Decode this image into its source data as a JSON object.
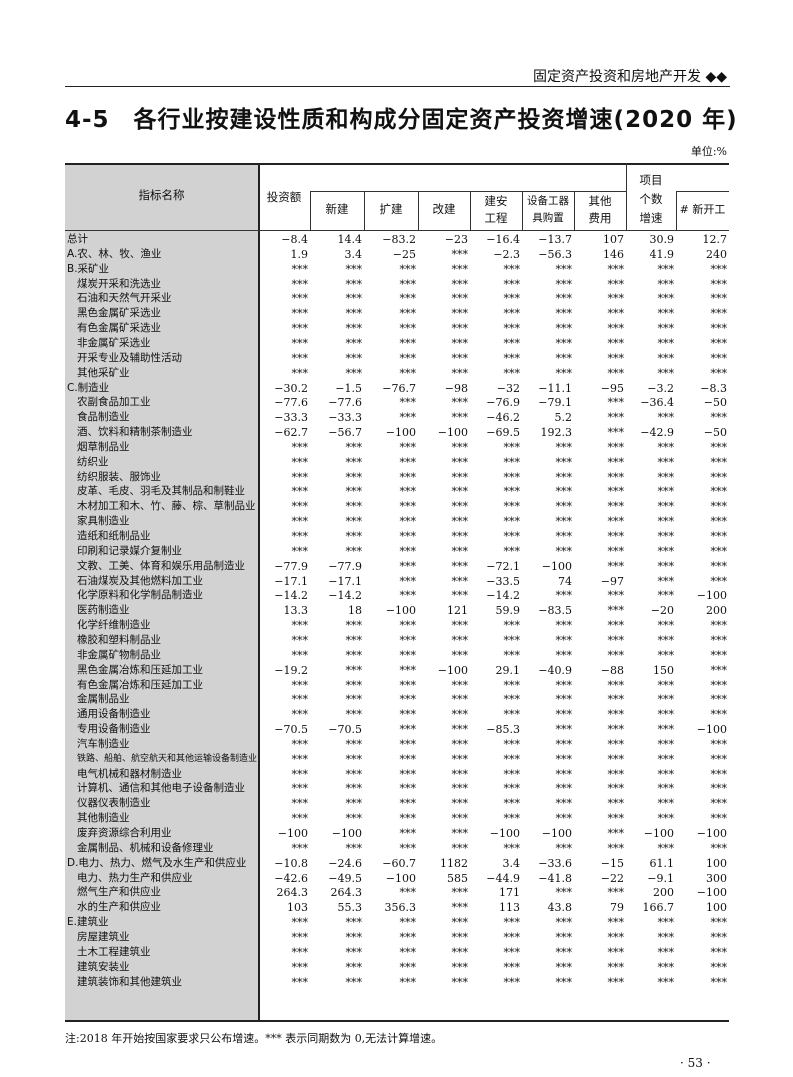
{
  "header": {
    "section": "固定资产投资和房地产开发",
    "ornament": "◆◆"
  },
  "title": "4-5　各行业按建设性质和构成分固定资产投资增速(2020 年)",
  "unit": "单位:%",
  "table": {
    "headers": {
      "name": "指标名称",
      "investment": "投资额",
      "new": "新建",
      "expand": "扩建",
      "rebuild": "改建",
      "construction_1": "建安",
      "construction_2": "工程",
      "equipment_1": "设备工器",
      "equipment_2": "具购置",
      "other_1": "其他",
      "other_2": "费用",
      "projects_1": "项目",
      "projects_2": "个数",
      "projects_3": "增速",
      "new_start": "# 新开工"
    },
    "rows": [
      {
        "name": "总计",
        "indent": false,
        "values": [
          "−8.4",
          "14.4",
          "−83.2",
          "−23",
          "−16.4",
          "−13.7",
          "107",
          "30.9",
          "12.7"
        ]
      },
      {
        "name": "A.农、林、牧、渔业",
        "indent": false,
        "values": [
          "1.9",
          "3.4",
          "−25",
          "***",
          "−2.3",
          "−56.3",
          "146",
          "41.9",
          "240"
        ]
      },
      {
        "name": "B.采矿业",
        "indent": false,
        "values": [
          "***",
          "***",
          "***",
          "***",
          "***",
          "***",
          "***",
          "***",
          "***"
        ]
      },
      {
        "name": "煤炭开采和洗选业",
        "indent": true,
        "values": [
          "***",
          "***",
          "***",
          "***",
          "***",
          "***",
          "***",
          "***",
          "***"
        ]
      },
      {
        "name": "石油和天然气开采业",
        "indent": true,
        "values": [
          "***",
          "***",
          "***",
          "***",
          "***",
          "***",
          "***",
          "***",
          "***"
        ]
      },
      {
        "name": "黑色金属矿采选业",
        "indent": true,
        "values": [
          "***",
          "***",
          "***",
          "***",
          "***",
          "***",
          "***",
          "***",
          "***"
        ]
      },
      {
        "name": "有色金属矿采选业",
        "indent": true,
        "values": [
          "***",
          "***",
          "***",
          "***",
          "***",
          "***",
          "***",
          "***",
          "***"
        ]
      },
      {
        "name": "非金属矿采选业",
        "indent": true,
        "values": [
          "***",
          "***",
          "***",
          "***",
          "***",
          "***",
          "***",
          "***",
          "***"
        ]
      },
      {
        "name": "开采专业及辅助性活动",
        "indent": true,
        "values": [
          "***",
          "***",
          "***",
          "***",
          "***",
          "***",
          "***",
          "***",
          "***"
        ]
      },
      {
        "name": "其他采矿业",
        "indent": true,
        "values": [
          "***",
          "***",
          "***",
          "***",
          "***",
          "***",
          "***",
          "***",
          "***"
        ]
      },
      {
        "name": "C.制造业",
        "indent": false,
        "values": [
          "−30.2",
          "−1.5",
          "−76.7",
          "−98",
          "−32",
          "−11.1",
          "−95",
          "−3.2",
          "−8.3"
        ]
      },
      {
        "name": "农副食品加工业",
        "indent": true,
        "values": [
          "−77.6",
          "−77.6",
          "***",
          "***",
          "−76.9",
          "−79.1",
          "***",
          "−36.4",
          "−50"
        ]
      },
      {
        "name": "食品制造业",
        "indent": true,
        "values": [
          "−33.3",
          "−33.3",
          "***",
          "***",
          "−46.2",
          "5.2",
          "***",
          "***",
          "***"
        ]
      },
      {
        "name": "酒、饮料和精制茶制造业",
        "indent": true,
        "values": [
          "−62.7",
          "−56.7",
          "−100",
          "−100",
          "−69.5",
          "192.3",
          "***",
          "−42.9",
          "−50"
        ]
      },
      {
        "name": "烟草制品业",
        "indent": true,
        "values": [
          "***",
          "***",
          "***",
          "***",
          "***",
          "***",
          "***",
          "***",
          "***"
        ]
      },
      {
        "name": "纺织业",
        "indent": true,
        "values": [
          "***",
          "***",
          "***",
          "***",
          "***",
          "***",
          "***",
          "***",
          "***"
        ]
      },
      {
        "name": "纺织服装、服饰业",
        "indent": true,
        "values": [
          "***",
          "***",
          "***",
          "***",
          "***",
          "***",
          "***",
          "***",
          "***"
        ]
      },
      {
        "name": "皮革、毛皮、羽毛及其制品和制鞋业",
        "indent": true,
        "values": [
          "***",
          "***",
          "***",
          "***",
          "***",
          "***",
          "***",
          "***",
          "***"
        ]
      },
      {
        "name": "木材加工和木、竹、藤、棕、草制品业",
        "indent": true,
        "values": [
          "***",
          "***",
          "***",
          "***",
          "***",
          "***",
          "***",
          "***",
          "***"
        ]
      },
      {
        "name": "家具制造业",
        "indent": true,
        "values": [
          "***",
          "***",
          "***",
          "***",
          "***",
          "***",
          "***",
          "***",
          "***"
        ]
      },
      {
        "name": "造纸和纸制品业",
        "indent": true,
        "values": [
          "***",
          "***",
          "***",
          "***",
          "***",
          "***",
          "***",
          "***",
          "***"
        ]
      },
      {
        "name": "印刷和记录媒介复制业",
        "indent": true,
        "values": [
          "***",
          "***",
          "***",
          "***",
          "***",
          "***",
          "***",
          "***",
          "***"
        ]
      },
      {
        "name": "文教、工美、体育和娱乐用品制造业",
        "indent": true,
        "values": [
          "−77.9",
          "−77.9",
          "***",
          "***",
          "−72.1",
          "−100",
          "***",
          "***",
          "***"
        ]
      },
      {
        "name": "石油煤炭及其他燃料加工业",
        "indent": true,
        "values": [
          "−17.1",
          "−17.1",
          "***",
          "***",
          "−33.5",
          "74",
          "−97",
          "***",
          "***"
        ]
      },
      {
        "name": "化学原料和化学制品制造业",
        "indent": true,
        "values": [
          "−14.2",
          "−14.2",
          "***",
          "***",
          "−14.2",
          "***",
          "***",
          "***",
          "−100"
        ]
      },
      {
        "name": "医药制造业",
        "indent": true,
        "values": [
          "13.3",
          "18",
          "−100",
          "121",
          "59.9",
          "−83.5",
          "***",
          "−20",
          "200"
        ]
      },
      {
        "name": "化学纤维制造业",
        "indent": true,
        "values": [
          "***",
          "***",
          "***",
          "***",
          "***",
          "***",
          "***",
          "***",
          "***"
        ]
      },
      {
        "name": "橡胶和塑料制品业",
        "indent": true,
        "values": [
          "***",
          "***",
          "***",
          "***",
          "***",
          "***",
          "***",
          "***",
          "***"
        ]
      },
      {
        "name": "非金属矿物制品业",
        "indent": true,
        "values": [
          "***",
          "***",
          "***",
          "***",
          "***",
          "***",
          "***",
          "***",
          "***"
        ]
      },
      {
        "name": "黑色金属冶炼和压延加工业",
        "indent": true,
        "values": [
          "−19.2",
          "***",
          "***",
          "−100",
          "29.1",
          "−40.9",
          "−88",
          "150",
          "***"
        ]
      },
      {
        "name": "有色金属冶炼和压延加工业",
        "indent": true,
        "values": [
          "***",
          "***",
          "***",
          "***",
          "***",
          "***",
          "***",
          "***",
          "***"
        ]
      },
      {
        "name": "金属制品业",
        "indent": true,
        "values": [
          "***",
          "***",
          "***",
          "***",
          "***",
          "***",
          "***",
          "***",
          "***"
        ]
      },
      {
        "name": "通用设备制造业",
        "indent": true,
        "values": [
          "***",
          "***",
          "***",
          "***",
          "***",
          "***",
          "***",
          "***",
          "***"
        ]
      },
      {
        "name": "专用设备制造业",
        "indent": true,
        "values": [
          "−70.5",
          "−70.5",
          "***",
          "***",
          "−85.3",
          "***",
          "***",
          "***",
          "−100"
        ]
      },
      {
        "name": "汽车制造业",
        "indent": true,
        "values": [
          "***",
          "***",
          "***",
          "***",
          "***",
          "***",
          "***",
          "***",
          "***"
        ]
      },
      {
        "name": "铁路、船舶、航空航天和其他运输设备制造业",
        "indent": true,
        "small": true,
        "values": [
          "***",
          "***",
          "***",
          "***",
          "***",
          "***",
          "***",
          "***",
          "***"
        ]
      },
      {
        "name": "电气机械和器材制造业",
        "indent": true,
        "values": [
          "***",
          "***",
          "***",
          "***",
          "***",
          "***",
          "***",
          "***",
          "***"
        ]
      },
      {
        "name": "计算机、通信和其他电子设备制造业",
        "indent": true,
        "values": [
          "***",
          "***",
          "***",
          "***",
          "***",
          "***",
          "***",
          "***",
          "***"
        ]
      },
      {
        "name": "仪器仪表制造业",
        "indent": true,
        "values": [
          "***",
          "***",
          "***",
          "***",
          "***",
          "***",
          "***",
          "***",
          "***"
        ]
      },
      {
        "name": "其他制造业",
        "indent": true,
        "values": [
          "***",
          "***",
          "***",
          "***",
          "***",
          "***",
          "***",
          "***",
          "***"
        ]
      },
      {
        "name": "废弃资源综合利用业",
        "indent": true,
        "values": [
          "−100",
          "−100",
          "***",
          "***",
          "−100",
          "−100",
          "***",
          "−100",
          "−100"
        ]
      },
      {
        "name": "金属制品、机械和设备修理业",
        "indent": true,
        "values": [
          "***",
          "***",
          "***",
          "***",
          "***",
          "***",
          "***",
          "***",
          "***"
        ]
      },
      {
        "name": "D.电力、热力、燃气及水生产和供应业",
        "indent": false,
        "values": [
          "−10.8",
          "−24.6",
          "−60.7",
          "1182",
          "3.4",
          "−33.6",
          "−15",
          "61.1",
          "100"
        ]
      },
      {
        "name": "电力、热力生产和供应业",
        "indent": true,
        "values": [
          "−42.6",
          "−49.5",
          "−100",
          "585",
          "−44.9",
          "−41.8",
          "−22",
          "−9.1",
          "300"
        ]
      },
      {
        "name": "燃气生产和供应业",
        "indent": true,
        "values": [
          "264.3",
          "264.3",
          "***",
          "***",
          "171",
          "***",
          "***",
          "200",
          "−100"
        ]
      },
      {
        "name": "水的生产和供应业",
        "indent": true,
        "values": [
          "103",
          "55.3",
          "356.3",
          "***",
          "113",
          "43.8",
          "79",
          "166.7",
          "100"
        ]
      },
      {
        "name": "E.建筑业",
        "indent": false,
        "values": [
          "***",
          "***",
          "***",
          "***",
          "***",
          "***",
          "***",
          "***",
          "***"
        ]
      },
      {
        "name": "房屋建筑业",
        "indent": true,
        "values": [
          "***",
          "***",
          "***",
          "***",
          "***",
          "***",
          "***",
          "***",
          "***"
        ]
      },
      {
        "name": "土木工程建筑业",
        "indent": true,
        "values": [
          "***",
          "***",
          "***",
          "***",
          "***",
          "***",
          "***",
          "***",
          "***"
        ]
      },
      {
        "name": "建筑安装业",
        "indent": true,
        "values": [
          "***",
          "***",
          "***",
          "***",
          "***",
          "***",
          "***",
          "***",
          "***"
        ]
      },
      {
        "name": "建筑装饰和其他建筑业",
        "indent": true,
        "values": [
          "***",
          "***",
          "***",
          "***",
          "***",
          "***",
          "***",
          "***",
          "***"
        ]
      }
    ]
  },
  "note": "注:2018 年开始按国家要求只公布增速。*** 表示同期数为 0,无法计算增速。",
  "page_number": "· 53 ·"
}
